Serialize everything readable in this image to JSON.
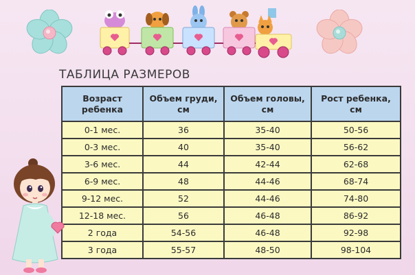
{
  "title": "ТАБЛИЦА РАЗМЕРОВ",
  "columns": [
    {
      "line1": "Возраст",
      "line2": "ребенка"
    },
    {
      "line1": "Объем груди,",
      "line2": "см"
    },
    {
      "line1": "Объем головы,",
      "line2": "см"
    },
    {
      "line1": "Рост ребенка,",
      "line2": "см"
    }
  ],
  "rows": [
    [
      "0-1 мес.",
      "36",
      "35-40",
      "50-56"
    ],
    [
      "0-3 мес.",
      "40",
      "35-40",
      "56-62"
    ],
    [
      "3-6 мес.",
      "44",
      "42-44",
      "62-68"
    ],
    [
      "6-9 мес.",
      "48",
      "44-46",
      "68-74"
    ],
    [
      "9-12 мес.",
      "52",
      "44-46",
      "74-80"
    ],
    [
      "12-18 мес.",
      "56",
      "46-48",
      "86-92"
    ],
    [
      "2 года",
      "54-56",
      "46-48",
      "92-98"
    ],
    [
      "3 года",
      "55-57",
      "48-50",
      "98-104"
    ]
  ],
  "colors": {
    "background": "#f3dfee",
    "header_fill": "#bcd6ee",
    "row_fill": "#fbf8c2",
    "border": "#3a3a3a"
  },
  "decorations": {
    "left_flower": "flower-icon",
    "right_flower": "flower-icon",
    "train": "toy-train-illustration",
    "doll": "doll-illustration"
  }
}
